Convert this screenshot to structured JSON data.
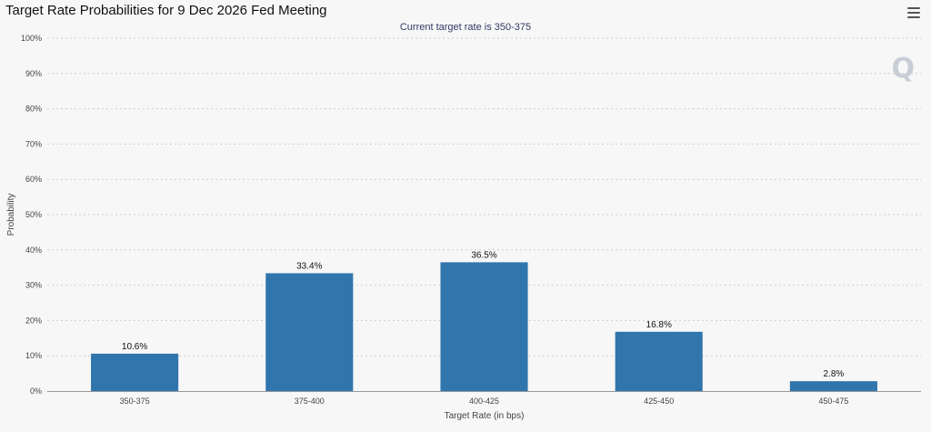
{
  "title": "Target Rate Probabilities for 9 Dec 2026 Fed Meeting",
  "subtitle": "Current target rate is 350-375",
  "menu_icon": "hamburger-menu-icon",
  "logo_text": "Q",
  "colors": {
    "bar": "#3175ad",
    "grid": "#cfcfcf",
    "background": "#f7f7f7"
  },
  "chart_data": {
    "type": "bar",
    "categories": [
      "350-375",
      "375-400",
      "400-425",
      "425-450",
      "450-475"
    ],
    "values": [
      10.6,
      33.4,
      36.5,
      16.8,
      2.8
    ],
    "data_labels": [
      "10.6%",
      "33.4%",
      "36.5%",
      "16.8%",
      "2.8%"
    ],
    "yticks": [
      "0%",
      "10%",
      "20%",
      "30%",
      "40%",
      "50%",
      "60%",
      "70%",
      "80%",
      "90%",
      "100%"
    ],
    "ylim": [
      0,
      100
    ],
    "xlabel": "Target Rate (in bps)",
    "ylabel": "Probability",
    "grid": true
  }
}
